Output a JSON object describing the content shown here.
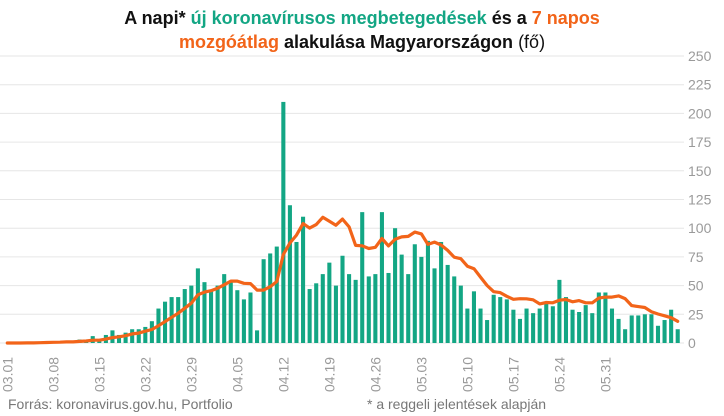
{
  "colors": {
    "bars": "#13a684",
    "line": "#f26419",
    "title": "#111111",
    "grid": "#e6e6e6",
    "tick": "#9a9a9a",
    "footer": "#777777"
  },
  "title": {
    "line1": [
      {
        "text": "A napi* ",
        "color": "#111111"
      },
      {
        "text": "új koronavírusos megbetegedések",
        "color": "#13a684"
      },
      {
        "text": " és a ",
        "color": "#111111"
      },
      {
        "text": "7 napos",
        "color": "#f26419"
      }
    ],
    "line2": [
      {
        "text": "mozgóátlag",
        "color": "#f26419"
      },
      {
        "text": " alakulása Magyarországon ",
        "color": "#111111"
      },
      {
        "text": "(fő)",
        "color": "#111111",
        "weight": "normal"
      }
    ]
  },
  "footer": {
    "source": "Forrás: koronavirus.gov.hu, Portfolio",
    "note": "* a reggeli jelentések alapján"
  },
  "chart_data": {
    "type": "bar",
    "start_date": "03.01",
    "ylim": [
      0,
      250
    ],
    "yticks": [
      0,
      25,
      50,
      75,
      100,
      125,
      150,
      175,
      200,
      225,
      250
    ],
    "xtick_labels": [
      "03.01",
      "03.08",
      "03.15",
      "03.22",
      "03.29",
      "04.05",
      "04.12",
      "04.19",
      "04.26",
      "05.03",
      "05.10",
      "05.17",
      "05.24",
      "05.31"
    ],
    "grid": true,
    "series": [
      {
        "name": "új koronavírusos megbetegedések",
        "type": "bar",
        "values": [
          0,
          0,
          0,
          1,
          0,
          1,
          1,
          1,
          1,
          2,
          1,
          3,
          3,
          6,
          2,
          7,
          11,
          7,
          9,
          12,
          12,
          14,
          19,
          30,
          36,
          40,
          40,
          47,
          50,
          65,
          53,
          45,
          50,
          60,
          53,
          46,
          38,
          44,
          11,
          73,
          78,
          84,
          210,
          120,
          88,
          110,
          47,
          52,
          60,
          70,
          50,
          76,
          60,
          55,
          114,
          58,
          60,
          114,
          61,
          100,
          77,
          60,
          86,
          75,
          89,
          65,
          88,
          68,
          58,
          50,
          30,
          45,
          30,
          20,
          42,
          40,
          38,
          29,
          21,
          30,
          26,
          30,
          35,
          32,
          55,
          40,
          29,
          27,
          33,
          26,
          44,
          44,
          30,
          21,
          12,
          24,
          24,
          25,
          25,
          15,
          20,
          29,
          12
        ]
      },
      {
        "name": "7 napos mozgóátlag",
        "type": "line",
        "values": [
          0,
          0,
          0,
          0.1,
          0.1,
          0.3,
          0.4,
          0.6,
          0.7,
          1.0,
          1.0,
          1.4,
          1.7,
          2.4,
          2.4,
          3.4,
          4.7,
          5.4,
          6.4,
          7.9,
          8.6,
          10.3,
          11.8,
          15.1,
          18.6,
          22.4,
          26.0,
          30.3,
          34.7,
          42.0,
          44.3,
          45.6,
          47.7,
          50.7,
          53.9,
          53.9,
          52.0,
          51.7,
          46.1,
          46.1,
          49.0,
          53.6,
          77.0,
          87.1,
          94.0,
          104.0,
          100.1,
          103.1,
          109.5,
          106.0,
          102.6,
          107.9,
          101.1,
          85.0,
          84.7,
          82.3,
          83.4,
          91.0,
          84.6,
          90.3,
          92.4,
          92.9,
          96.6,
          95.0,
          85.9,
          87.9,
          85.4,
          80.7,
          74.7,
          73.4,
          66.9,
          64.7,
          57.4,
          50.1,
          44.7,
          43.9,
          40.7,
          38.1,
          38.6,
          38.5,
          37.6,
          34.1,
          35.3,
          35.0,
          37.3,
          37.9,
          35.9,
          36.9,
          35.0,
          35.0,
          39.1,
          40.0,
          40.0,
          41.0,
          38.7,
          32.6,
          31.7,
          30.9,
          27.3,
          25.3,
          23.7,
          22.0,
          18.9
        ]
      }
    ]
  }
}
